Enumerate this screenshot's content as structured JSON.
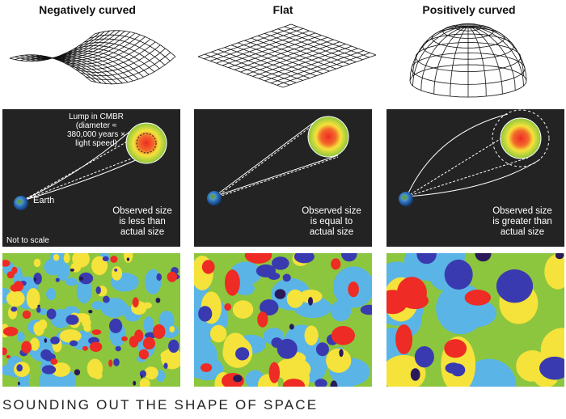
{
  "headings": {
    "negative": "Negatively curved",
    "flat": "Flat",
    "positive": "Positively curved"
  },
  "panels": {
    "lump_label": "Lump in CMBR\n(diameter ≈\n380,000 years ×\nlight speed)",
    "earth_label": "Earth",
    "scale_note": "Not to scale",
    "negative_observed": "Observed size\nis less than\nactual size",
    "flat_observed": "Observed size\nis equal to\nactual size",
    "positive_observed": "Observed size\nis greater than\nactual size"
  },
  "caption": "SOUNDING OUT THE SHAPE OF SPACE",
  "colors": {
    "panel_background": "#232323",
    "cmb_green": "#8cc63e",
    "cmb_yellow": "#f5e23a",
    "cmb_red": "#ee2b24",
    "cmb_blue": "#3a3ab0",
    "cmb_cyan": "#5ab4e6"
  }
}
